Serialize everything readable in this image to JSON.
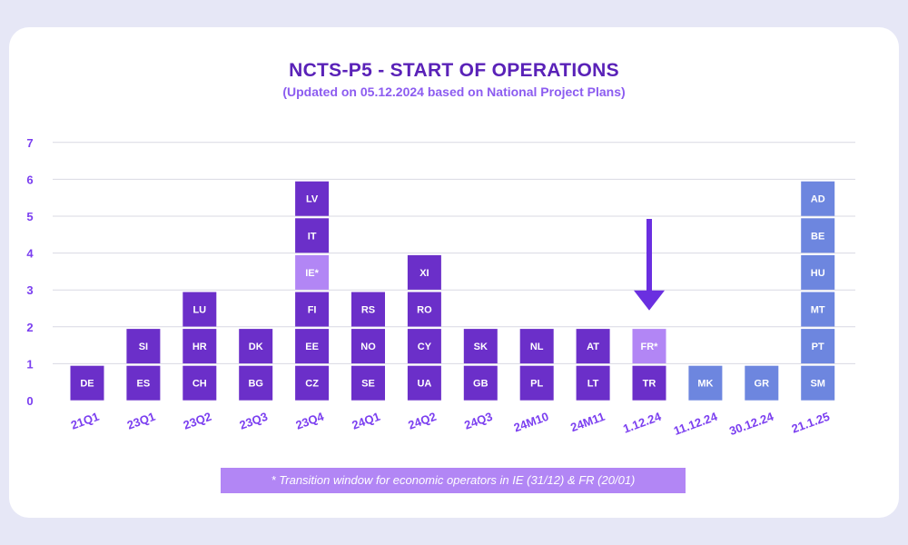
{
  "title": "NCTS-P5 - START OF OPERATIONS",
  "subtitle": "(Updated on 05.12.2024 based on National Project Plans)",
  "footnote": "*  Transition window for economic operators in IE (31/12) & FR (20/01)",
  "colors": {
    "primary": "#6b2fc9",
    "transition": "#b286f5",
    "blue": "#6d86df",
    "arrow": "#6a2fe0",
    "axis_text": "#7b3ff0",
    "title": "#5a22b8",
    "grid": "#d9d9e3",
    "background": "#e6e7f6"
  },
  "chart_data": {
    "type": "bar",
    "stacked": true,
    "title": "NCTS-P5 - START OF OPERATIONS",
    "subtitle": "(Updated on 05.12.2024 based on National Project Plans)",
    "ylim": [
      0,
      7
    ],
    "yticks": [
      "0",
      "1",
      "2",
      "3",
      "4",
      "5",
      "6",
      "7"
    ],
    "grid": true,
    "categories": [
      "21Q1",
      "23Q1",
      "23Q2",
      "23Q3",
      "23Q4",
      "24Q1",
      "24Q2",
      "24Q3",
      "24M10",
      "24M11",
      "1.12.24",
      "11.12.24",
      "30.12.24",
      "21.1.25"
    ],
    "values": [
      1,
      2,
      3,
      2,
      6,
      3,
      4,
      2,
      2,
      2,
      2,
      1,
      1,
      6
    ],
    "segments": [
      [
        {
          "label": "DE",
          "color": "#6b2fc9"
        }
      ],
      [
        {
          "label": "ES",
          "color": "#6b2fc9"
        },
        {
          "label": "SI",
          "color": "#6b2fc9"
        }
      ],
      [
        {
          "label": "CH",
          "color": "#6b2fc9"
        },
        {
          "label": "HR",
          "color": "#6b2fc9"
        },
        {
          "label": "LU",
          "color": "#6b2fc9"
        }
      ],
      [
        {
          "label": "BG",
          "color": "#6b2fc9"
        },
        {
          "label": "DK",
          "color": "#6b2fc9"
        }
      ],
      [
        {
          "label": "CZ",
          "color": "#6b2fc9"
        },
        {
          "label": "EE",
          "color": "#6b2fc9"
        },
        {
          "label": "FI",
          "color": "#6b2fc9"
        },
        {
          "label": "IE*",
          "color": "#b286f5"
        },
        {
          "label": "IT",
          "color": "#6b2fc9"
        },
        {
          "label": "LV",
          "color": "#6b2fc9"
        }
      ],
      [
        {
          "label": "SE",
          "color": "#6b2fc9"
        },
        {
          "label": "NO",
          "color": "#6b2fc9"
        },
        {
          "label": "RS",
          "color": "#6b2fc9"
        }
      ],
      [
        {
          "label": "UA",
          "color": "#6b2fc9"
        },
        {
          "label": "CY",
          "color": "#6b2fc9"
        },
        {
          "label": "RO",
          "color": "#6b2fc9"
        },
        {
          "label": "XI",
          "color": "#6b2fc9"
        }
      ],
      [
        {
          "label": "GB",
          "color": "#6b2fc9"
        },
        {
          "label": "SK",
          "color": "#6b2fc9"
        }
      ],
      [
        {
          "label": "PL",
          "color": "#6b2fc9"
        },
        {
          "label": "NL",
          "color": "#6b2fc9"
        }
      ],
      [
        {
          "label": "LT",
          "color": "#6b2fc9"
        },
        {
          "label": "AT",
          "color": "#6b2fc9"
        }
      ],
      [
        {
          "label": "TR",
          "color": "#6b2fc9"
        },
        {
          "label": "FR*",
          "color": "#b286f5"
        }
      ],
      [
        {
          "label": "MK",
          "color": "#6d86df"
        }
      ],
      [
        {
          "label": "GR",
          "color": "#6d86df"
        }
      ],
      [
        {
          "label": "SM",
          "color": "#6d86df"
        },
        {
          "label": "PT",
          "color": "#6d86df"
        },
        {
          "label": "MT",
          "color": "#6d86df"
        },
        {
          "label": "HU",
          "color": "#6d86df"
        },
        {
          "label": "BE",
          "color": "#6d86df"
        },
        {
          "label": "AD",
          "color": "#6d86df"
        }
      ]
    ],
    "annotation": {
      "type": "arrow",
      "points_to": "1.12.24",
      "from_value": 5
    }
  }
}
